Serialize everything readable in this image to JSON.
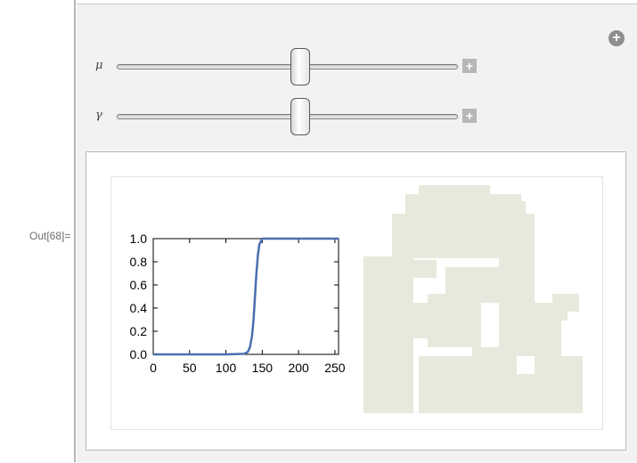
{
  "output_label": "Out[68]=",
  "controls": [
    {
      "name": "μ",
      "level": 0.52
    },
    {
      "name": "γ",
      "level": 0.52
    }
  ],
  "icons": {
    "add_control": "plus-circle-icon",
    "slider_expand": "plus-square-icon"
  },
  "chart_data": {
    "type": "line",
    "title": "",
    "xlabel": "",
    "ylabel": "",
    "xlim": [
      0,
      255
    ],
    "ylim": [
      0,
      1
    ],
    "xticks": [
      0,
      50,
      100,
      150,
      200,
      250
    ],
    "yticks": [
      0.0,
      0.2,
      0.4,
      0.6,
      0.8,
      1.0
    ],
    "series": [
      {
        "color": "#4a6fb0",
        "x": [
          0,
          100,
          125,
          130,
          133,
          136,
          138,
          140,
          142,
          144,
          146,
          150,
          255
        ],
        "y": [
          0,
          0,
          0.005,
          0.02,
          0.06,
          0.16,
          0.3,
          0.5,
          0.7,
          0.86,
          0.95,
          1.0,
          1.0
        ]
      }
    ]
  },
  "image": {
    "pixel_color": "#e8e8dc"
  }
}
